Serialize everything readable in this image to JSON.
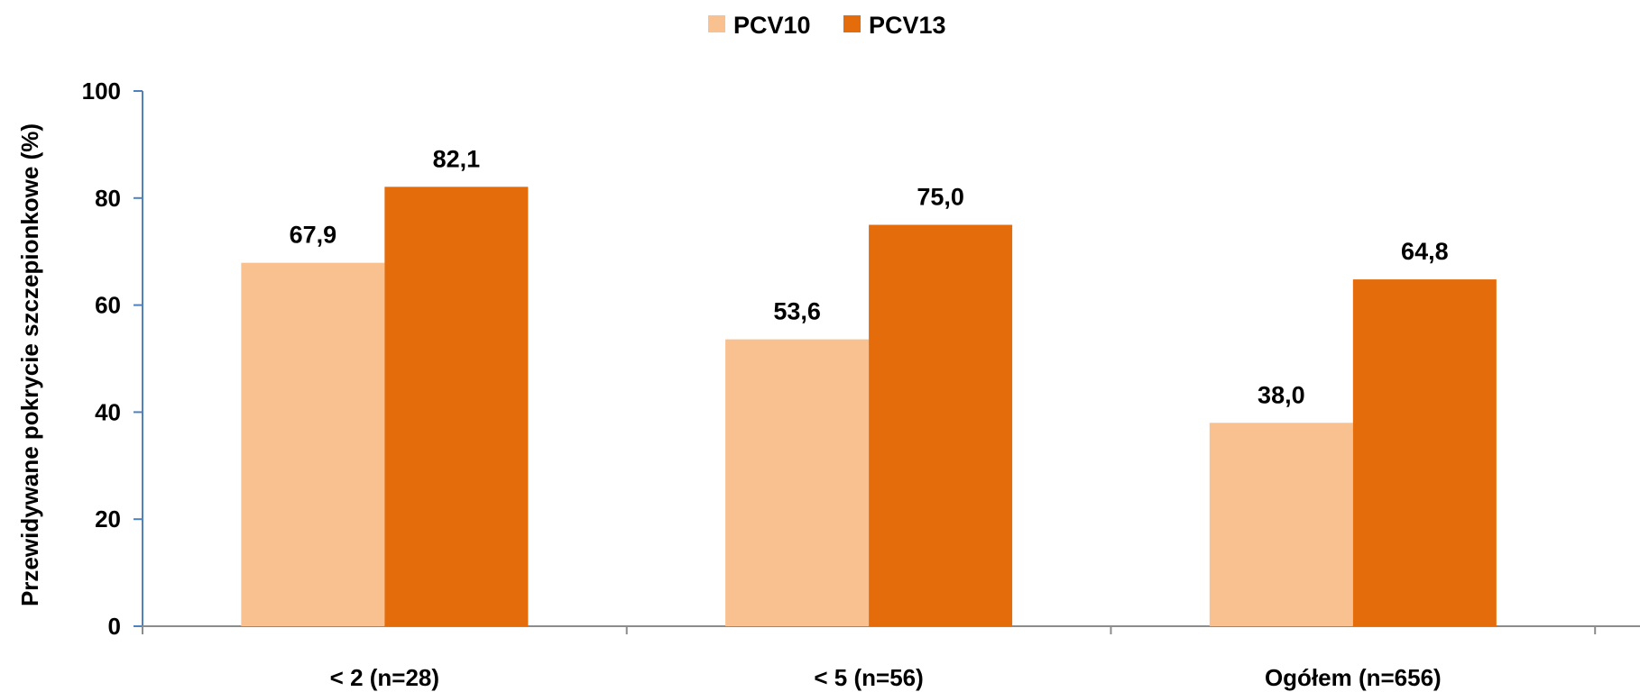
{
  "chart_data": {
    "type": "bar",
    "title": "",
    "xlabel": "",
    "ylabel": "Przewidywane pokrycie szczepionkowe (%)",
    "categories": [
      "< 2 (n=28)",
      "< 5 (n=56)",
      "Ogółem (n=656)"
    ],
    "series": [
      {
        "name": "PCV10",
        "color": "#F9C090",
        "values": [
          67.9,
          53.6,
          38.0
        ],
        "labels": [
          "67,9",
          "53,6",
          "38,0"
        ]
      },
      {
        "name": "PCV13",
        "color": "#E46C0A",
        "values": [
          82.1,
          75.0,
          64.8
        ],
        "labels": [
          "82,1",
          "75,0",
          "64,8"
        ]
      }
    ],
    "ylim": [
      0,
      100
    ],
    "yticks": [
      0,
      20,
      40,
      60,
      80,
      100
    ],
    "grid": false,
    "legend_position": "top-center",
    "axis_color": "#4F81BD",
    "bottom_axis_color": "#8C8C8C"
  }
}
